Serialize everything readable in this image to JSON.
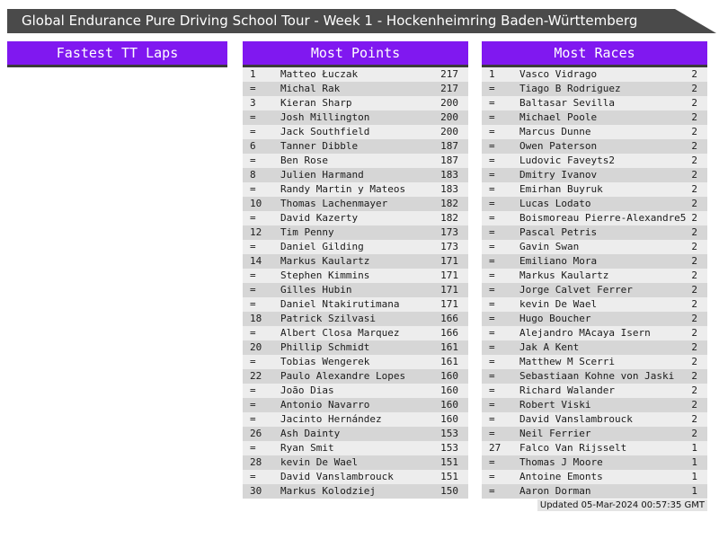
{
  "title_bar": {
    "text": "Global Endurance Pure Driving School Tour - Week 1 - Hockenheimring Baden-Württemberg"
  },
  "columns": [
    {
      "id": "fastest-tt-laps",
      "header": "Fastest TT Laps",
      "rows": []
    },
    {
      "id": "most-points",
      "header": "Most Points",
      "rows": [
        {
          "rank": "1",
          "name": "Matteo Łuczak",
          "value": "217"
        },
        {
          "rank": "=",
          "name": "Michal Rak",
          "value": "217"
        },
        {
          "rank": "3",
          "name": "Kieran Sharp",
          "value": "200"
        },
        {
          "rank": "=",
          "name": "Josh Millington",
          "value": "200"
        },
        {
          "rank": "=",
          "name": "Jack Southfield",
          "value": "200"
        },
        {
          "rank": "6",
          "name": "Tanner Dibble",
          "value": "187"
        },
        {
          "rank": "=",
          "name": "Ben Rose",
          "value": "187"
        },
        {
          "rank": "8",
          "name": "Julien Harmand",
          "value": "183"
        },
        {
          "rank": "=",
          "name": "Randy Martin y Mateos",
          "value": "183"
        },
        {
          "rank": "10",
          "name": "Thomas Lachenmayer",
          "value": "182"
        },
        {
          "rank": "=",
          "name": "David Kazerty",
          "value": "182"
        },
        {
          "rank": "12",
          "name": "Tim Penny",
          "value": "173"
        },
        {
          "rank": "=",
          "name": "Daniel Gilding",
          "value": "173"
        },
        {
          "rank": "14",
          "name": "Markus Kaulartz",
          "value": "171"
        },
        {
          "rank": "=",
          "name": "Stephen Kimmins",
          "value": "171"
        },
        {
          "rank": "=",
          "name": "Gilles Hubin",
          "value": "171"
        },
        {
          "rank": "=",
          "name": "Daniel Ntakirutimana",
          "value": "171"
        },
        {
          "rank": "18",
          "name": "Patrick Szilvasi",
          "value": "166"
        },
        {
          "rank": "=",
          "name": "Albert Closa Marquez",
          "value": "166"
        },
        {
          "rank": "20",
          "name": "Phillip Schmidt",
          "value": "161"
        },
        {
          "rank": "=",
          "name": "Tobias Wengerek",
          "value": "161"
        },
        {
          "rank": "22",
          "name": "Paulo Alexandre Lopes",
          "value": "160"
        },
        {
          "rank": "=",
          "name": "João Dias",
          "value": "160"
        },
        {
          "rank": "=",
          "name": "Antonio Navarro",
          "value": "160"
        },
        {
          "rank": "=",
          "name": "Jacinto Hernández",
          "value": "160"
        },
        {
          "rank": "26",
          "name": "Ash Dainty",
          "value": "153"
        },
        {
          "rank": "=",
          "name": "Ryan Smit",
          "value": "153"
        },
        {
          "rank": "28",
          "name": "kevin De Wael",
          "value": "151"
        },
        {
          "rank": "=",
          "name": "David Vanslambrouck",
          "value": "151"
        },
        {
          "rank": "30",
          "name": "Markus Kolodziej",
          "value": "150"
        }
      ]
    },
    {
      "id": "most-races",
      "header": "Most Races",
      "rows": [
        {
          "rank": "1",
          "name": "Vasco Vidrago",
          "value": "2"
        },
        {
          "rank": "=",
          "name": "Tiago B Rodriguez",
          "value": "2"
        },
        {
          "rank": "=",
          "name": "Baltasar Sevilla",
          "value": "2"
        },
        {
          "rank": "=",
          "name": "Michael Poole",
          "value": "2"
        },
        {
          "rank": "=",
          "name": "Marcus Dunne",
          "value": "2"
        },
        {
          "rank": "=",
          "name": "Owen Paterson",
          "value": "2"
        },
        {
          "rank": "=",
          "name": "Ludovic Faveyts2",
          "value": "2"
        },
        {
          "rank": "=",
          "name": "Dmitry Ivanov",
          "value": "2"
        },
        {
          "rank": "=",
          "name": "Emirhan Buyruk",
          "value": "2"
        },
        {
          "rank": "=",
          "name": "Lucas Lodato",
          "value": "2"
        },
        {
          "rank": "=",
          "name": "Boismoreau Pierre-Alexandre5",
          "value": "2"
        },
        {
          "rank": "=",
          "name": "Pascal Petris",
          "value": "2"
        },
        {
          "rank": "=",
          "name": "Gavin Swan",
          "value": "2"
        },
        {
          "rank": "=",
          "name": "Emiliano Mora",
          "value": "2"
        },
        {
          "rank": "=",
          "name": "Markus Kaulartz",
          "value": "2"
        },
        {
          "rank": "=",
          "name": "Jorge Calvet Ferrer",
          "value": "2"
        },
        {
          "rank": "=",
          "name": "kevin De Wael",
          "value": "2"
        },
        {
          "rank": "=",
          "name": "Hugo Boucher",
          "value": "2"
        },
        {
          "rank": "=",
          "name": "Alejandro MAcaya Isern",
          "value": "2"
        },
        {
          "rank": "=",
          "name": "Jak A Kent",
          "value": "2"
        },
        {
          "rank": "=",
          "name": "Matthew M Scerri",
          "value": "2"
        },
        {
          "rank": "=",
          "name": "Sebastiaan Kohne von Jaski",
          "value": "2"
        },
        {
          "rank": "=",
          "name": "Richard Walander",
          "value": "2"
        },
        {
          "rank": "=",
          "name": "Robert Viski",
          "value": "2"
        },
        {
          "rank": "=",
          "name": "David Vanslambrouck",
          "value": "2"
        },
        {
          "rank": "=",
          "name": "Neil Ferrier",
          "value": "2"
        },
        {
          "rank": "27",
          "name": "Falco Van Rijsselt",
          "value": "1"
        },
        {
          "rank": "=",
          "name": "Thomas J Moore",
          "value": "1"
        },
        {
          "rank": "=",
          "name": "Antoine Emonts",
          "value": "1"
        },
        {
          "rank": "=",
          "name": "Aaron Dorman",
          "value": "1"
        }
      ]
    }
  ],
  "footer": {
    "updated": "Updated 05-Mar-2024 00:57:35 GMT"
  },
  "colors": {
    "accent_purple": "#8018f0",
    "title_bar_bg": "#4a4a4a",
    "header_underline": "#3b3b3b",
    "row_light": "#ededed",
    "row_dark": "#d6d6d6",
    "footer_bg": "#e4e4e4"
  }
}
